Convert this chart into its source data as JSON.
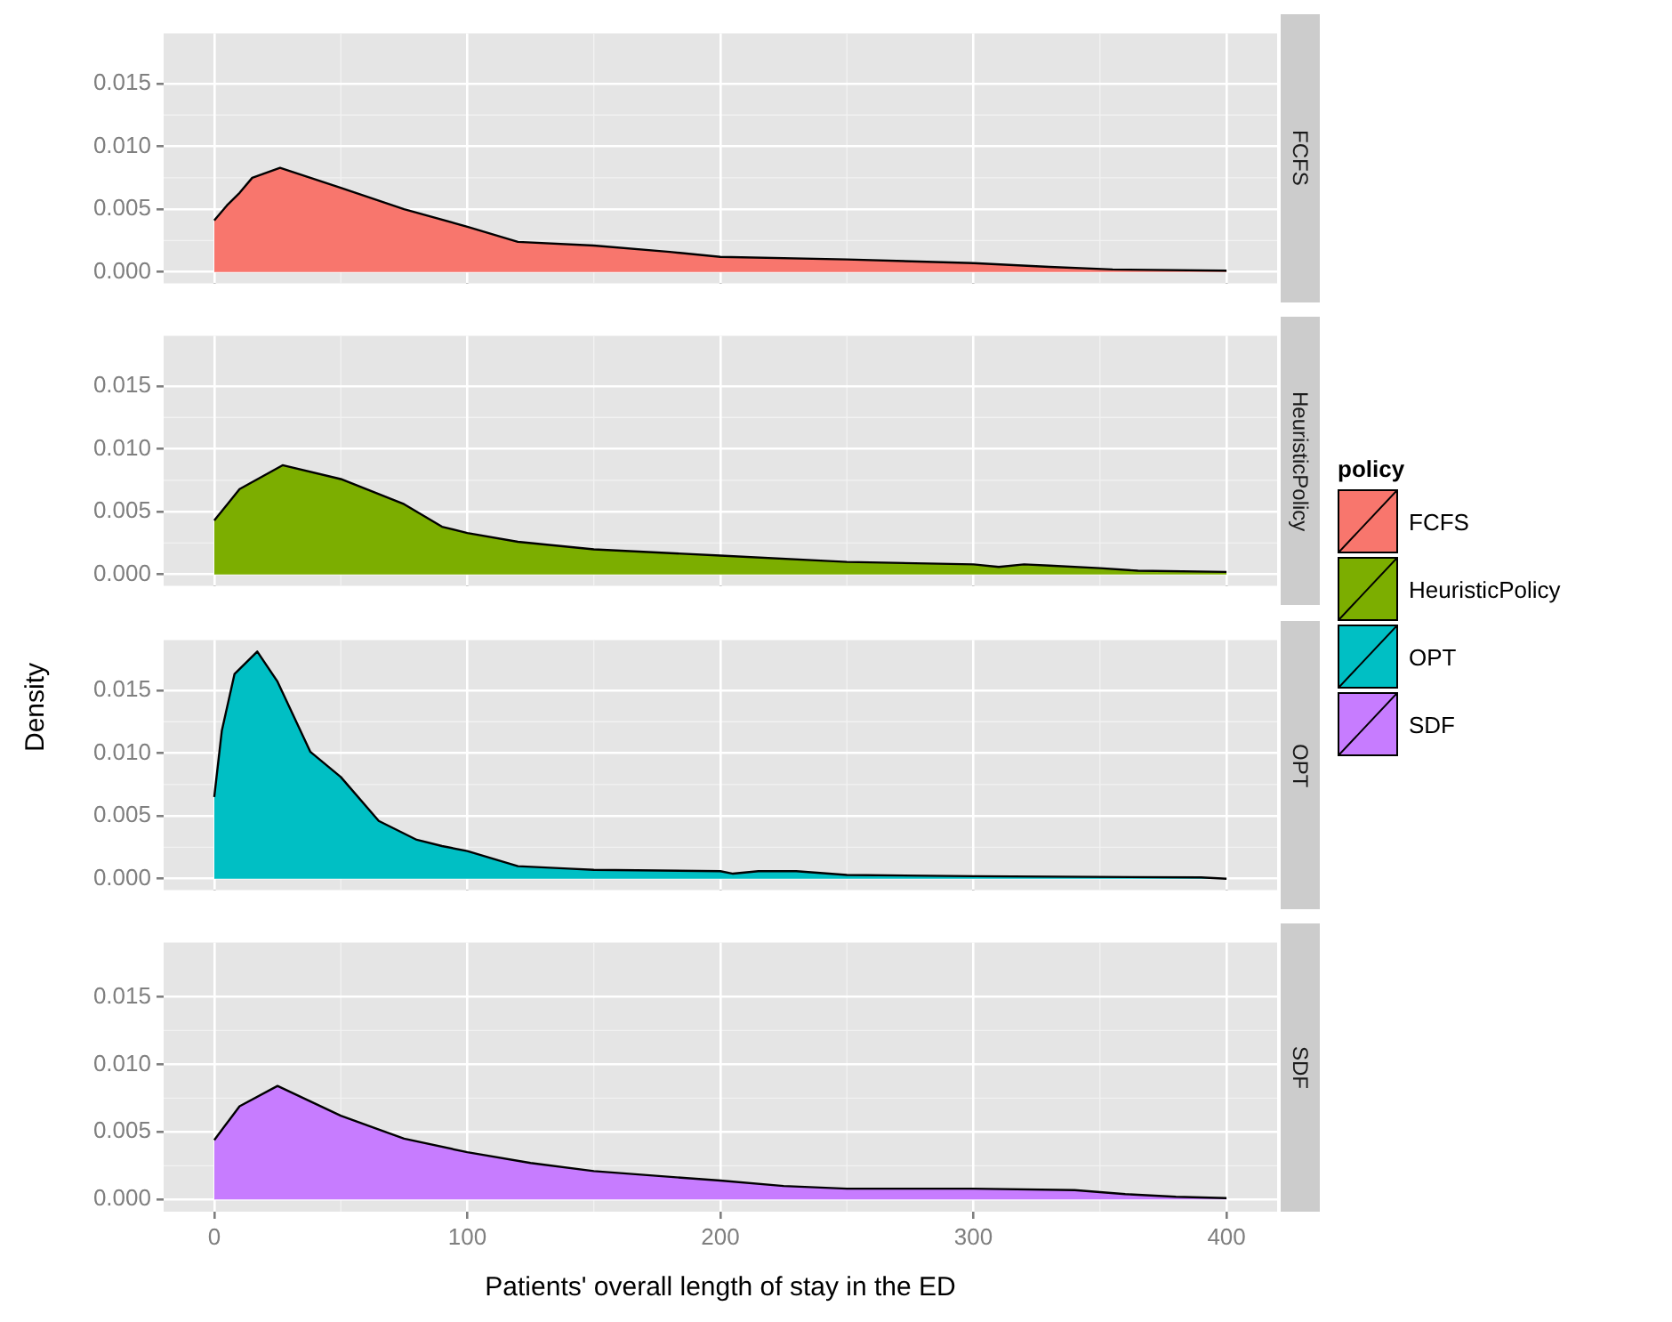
{
  "chart_data": [
    {
      "type": "area",
      "title": "FCFS",
      "legend_title": "policy",
      "legend": "right",
      "tick_labels": "y",
      "grid": true,
      "x": [
        0,
        5,
        10,
        15,
        26,
        50,
        75,
        100,
        120,
        150,
        180,
        200,
        250,
        300,
        330,
        355,
        400
      ],
      "series": [
        {
          "name": "FCFS",
          "color": "#f8766d",
          "values": [
            0.0041,
            0.0053,
            0.0063,
            0.0075,
            0.0083,
            0.0067,
            0.005,
            0.0036,
            0.0024,
            0.0021,
            0.0016,
            0.0012,
            0.001,
            0.0007,
            0.0004,
            0.0002,
            0.0001
          ]
        }
      ],
      "xlim": [
        -20,
        420
      ],
      "ylim": [
        -0.0009,
        0.019
      ],
      "xticks": [
        0,
        100,
        200,
        300,
        400
      ],
      "yticks": [
        {
          "value": 0,
          "label": "0.000"
        },
        {
          "value": 0.005,
          "label": "0.005"
        },
        {
          "value": 0.01,
          "label": "0.010"
        },
        {
          "value": 0.015,
          "label": "0.015"
        }
      ]
    },
    {
      "type": "area",
      "title": "HeuristicPolicy",
      "legend": "right",
      "tick_labels": "y",
      "grid": true,
      "x": [
        0,
        10,
        27,
        50,
        75,
        90,
        100,
        120,
        150,
        200,
        250,
        300,
        310,
        320,
        330,
        350,
        365,
        400
      ],
      "series": [
        {
          "name": "HeuristicPolicy",
          "color": "#7cae00",
          "values": [
            0.0043,
            0.0068,
            0.0087,
            0.0076,
            0.0056,
            0.0038,
            0.0033,
            0.0026,
            0.002,
            0.0015,
            0.001,
            0.0008,
            0.0006,
            0.0008,
            0.0007,
            0.0005,
            0.0003,
            0.0002
          ]
        }
      ],
      "xlim": [
        -20,
        420
      ],
      "ylim": [
        -0.0009,
        0.019
      ],
      "xticks": [
        0,
        100,
        200,
        300,
        400
      ],
      "yticks": [
        {
          "value": 0,
          "label": "0.000"
        },
        {
          "value": 0.005,
          "label": "0.005"
        },
        {
          "value": 0.01,
          "label": "0.010"
        },
        {
          "value": 0.015,
          "label": "0.015"
        }
      ]
    },
    {
      "type": "area",
      "title": "OPT",
      "ylabel": "Density",
      "legend": "right",
      "tick_labels": "y",
      "grid": true,
      "x": [
        0,
        3,
        8,
        17,
        25,
        38,
        50,
        65,
        80,
        90,
        100,
        120,
        140,
        150,
        200,
        205,
        215,
        230,
        250,
        300,
        390,
        400
      ],
      "series": [
        {
          "name": "OPT",
          "color": "#00bfc4",
          "values": [
            0.0065,
            0.0118,
            0.0163,
            0.0181,
            0.0157,
            0.0101,
            0.0081,
            0.0046,
            0.0031,
            0.0026,
            0.0022,
            0.001,
            0.0008,
            0.0007,
            0.0006,
            0.0004,
            0.0006,
            0.0006,
            0.0003,
            0.0002,
            0.0001,
            0
          ]
        }
      ],
      "xlim": [
        -20,
        420
      ],
      "ylim": [
        -0.0009,
        0.019
      ],
      "xticks": [
        0,
        100,
        200,
        300,
        400
      ],
      "yticks": [
        {
          "value": 0,
          "label": "0.000"
        },
        {
          "value": 0.005,
          "label": "0.005"
        },
        {
          "value": 0.01,
          "label": "0.010"
        },
        {
          "value": 0.015,
          "label": "0.015"
        }
      ]
    },
    {
      "type": "area",
      "title": "SDF",
      "xlabel": "Patients' overall length of stay in the ED",
      "legend": "right",
      "grid": true,
      "x": [
        0,
        10,
        25,
        50,
        75,
        100,
        125,
        150,
        200,
        225,
        250,
        300,
        340,
        360,
        380,
        400
      ],
      "series": [
        {
          "name": "SDF",
          "color": "#c77cff",
          "values": [
            0.0044,
            0.0069,
            0.0084,
            0.0062,
            0.0045,
            0.0035,
            0.0027,
            0.0021,
            0.0014,
            0.001,
            0.0008,
            0.0008,
            0.0007,
            0.0004,
            0.0002,
            0.0001
          ]
        }
      ],
      "xlim": [
        -20,
        420
      ],
      "ylim": [
        -0.0009,
        0.019
      ],
      "xticks": [
        0,
        100,
        200,
        300,
        400
      ],
      "yticks": [
        {
          "value": 0,
          "label": "0.000"
        },
        {
          "value": 0.005,
          "label": "0.005"
        },
        {
          "value": 0.01,
          "label": "0.010"
        },
        {
          "value": 0.015,
          "label": "0.015"
        }
      ]
    }
  ]
}
